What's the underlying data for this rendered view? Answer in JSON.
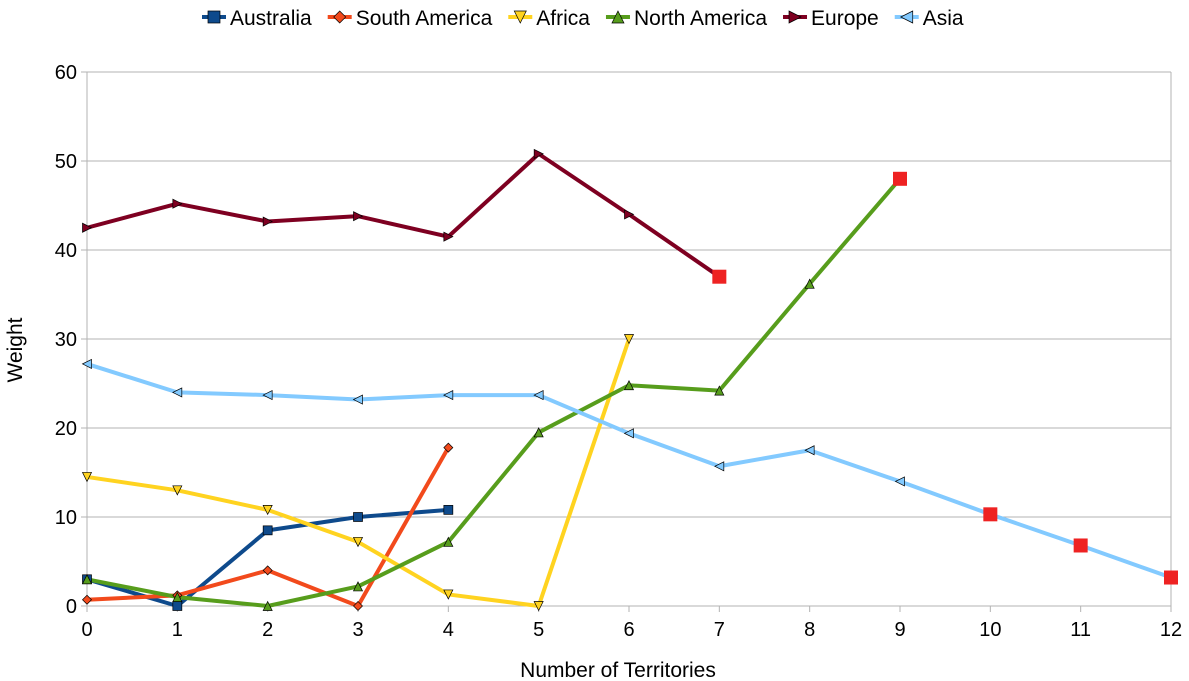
{
  "chart_data": {
    "type": "line",
    "xlabel": "Number of Territories",
    "ylabel": "Weight",
    "xlim": [
      0,
      12
    ],
    "ylim": [
      0,
      60
    ],
    "x_ticks": [
      "0",
      "1",
      "2",
      "3",
      "4",
      "5",
      "6",
      "7",
      "8",
      "9",
      "10",
      "11",
      "12"
    ],
    "y_ticks": [
      "0",
      "10",
      "20",
      "30",
      "40",
      "50",
      "60"
    ],
    "grid": "horizontal",
    "legend_position": "top",
    "highlight_marker_color": "#ee2222",
    "series": [
      {
        "name": "Australia",
        "color": "#0e4a8c",
        "marker": "square",
        "x": [
          0,
          1,
          2,
          3,
          4
        ],
        "y": [
          3.0,
          0.0,
          8.5,
          10.0,
          10.8
        ],
        "highlight_last": false
      },
      {
        "name": "South America",
        "color": "#f24a1c",
        "marker": "diamond",
        "x": [
          0,
          1,
          2,
          3,
          4
        ],
        "y": [
          0.7,
          1.2,
          4.0,
          0.0,
          17.8
        ],
        "highlight_last": false
      },
      {
        "name": "Africa",
        "color": "#ffd320",
        "marker": "triangle-down",
        "x": [
          0,
          1,
          2,
          3,
          4,
          5,
          6
        ],
        "y": [
          14.5,
          13.0,
          10.8,
          7.2,
          1.3,
          0.0,
          30.0
        ],
        "highlight_last": false
      },
      {
        "name": "North America",
        "color": "#579d1c",
        "marker": "triangle-up",
        "x": [
          0,
          1,
          2,
          3,
          4,
          5,
          6,
          7,
          8,
          9
        ],
        "y": [
          3.0,
          1.0,
          0.0,
          2.2,
          7.2,
          19.5,
          24.8,
          24.2,
          36.2,
          48.0
        ],
        "highlight_last": true
      },
      {
        "name": "Europe",
        "color": "#7e0021",
        "marker": "triangle-right",
        "x": [
          0,
          1,
          2,
          3,
          4,
          5,
          6,
          7
        ],
        "y": [
          42.5,
          45.2,
          43.2,
          43.8,
          41.5,
          50.8,
          44.0,
          37.0
        ],
        "highlight_last": true
      },
      {
        "name": "Asia",
        "color": "#83caff",
        "marker": "triangle-left",
        "x": [
          0,
          1,
          2,
          3,
          4,
          5,
          6,
          7,
          8,
          9,
          10,
          11,
          12
        ],
        "y": [
          27.2,
          24.0,
          23.7,
          23.2,
          23.7,
          23.7,
          19.4,
          15.7,
          17.5,
          14.0,
          10.3,
          6.8,
          3.2
        ],
        "highlight_last": true,
        "highlight_points": [
          10,
          11,
          12
        ]
      }
    ]
  }
}
